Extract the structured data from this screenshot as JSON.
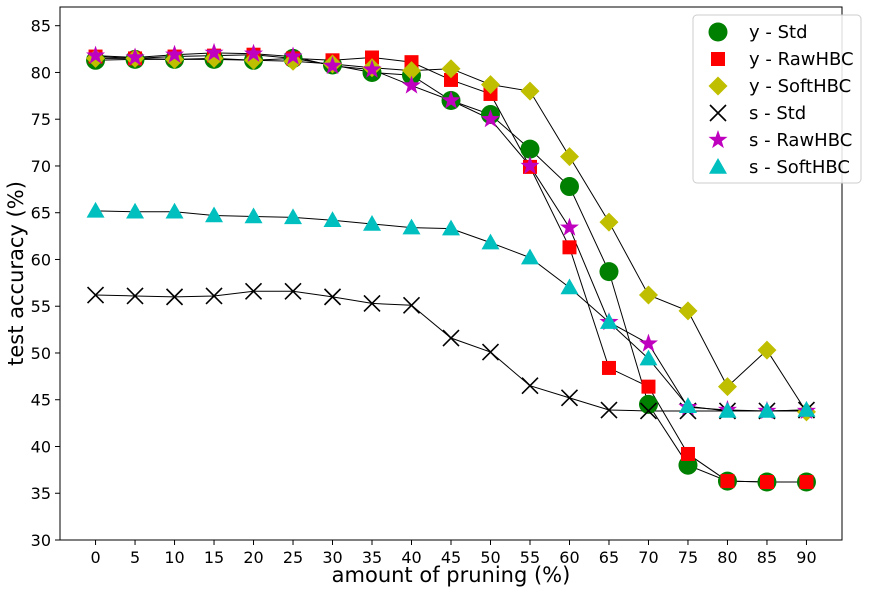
{
  "chart_data": {
    "type": "line",
    "title": "",
    "xlabel": "amount of pruning (%)",
    "ylabel": "test accuracy (%)",
    "x": [
      0,
      5,
      10,
      15,
      20,
      25,
      30,
      35,
      40,
      45,
      50,
      55,
      60,
      65,
      70,
      75,
      80,
      85,
      90
    ],
    "xticks": [
      "0",
      "5",
      "10",
      "15",
      "20",
      "25",
      "30",
      "35",
      "40",
      "45",
      "50",
      "55",
      "60",
      "65",
      "70",
      "75",
      "80",
      "85",
      "90"
    ],
    "yticks": [
      "30",
      "35",
      "40",
      "45",
      "50",
      "55",
      "60",
      "65",
      "70",
      "75",
      "80",
      "85"
    ],
    "ylim": [
      30,
      87
    ],
    "xlim": [
      -4.5,
      94.5
    ],
    "grid": false,
    "legend_position": "top-right",
    "series": [
      {
        "name": "y - Std",
        "marker": "circle",
        "color": "#008000",
        "values": [
          81.3,
          81.4,
          81.4,
          81.4,
          81.3,
          81.5,
          80.8,
          80.0,
          79.7,
          77.0,
          75.5,
          71.8,
          67.8,
          58.7,
          44.5,
          38.0,
          36.3,
          36.2,
          36.2
        ]
      },
      {
        "name": "y - RawHBC",
        "marker": "square",
        "color": "#ff0000",
        "values": [
          81.7,
          81.5,
          81.7,
          81.8,
          81.9,
          81.5,
          81.3,
          81.6,
          81.1,
          79.2,
          77.7,
          69.9,
          61.3,
          48.4,
          46.4,
          39.2,
          36.3,
          36.2,
          36.2
        ]
      },
      {
        "name": "y - SoftHBC",
        "marker": "diamond",
        "color": "#bfbf00",
        "values": [
          81.5,
          81.5,
          81.4,
          81.5,
          81.3,
          81.2,
          80.9,
          80.5,
          80.2,
          80.4,
          78.7,
          78.0,
          71.0,
          64.0,
          56.2,
          54.5,
          46.4,
          50.3,
          43.7
        ]
      },
      {
        "name": "s - Std",
        "marker": "x",
        "color": "#000000",
        "values": [
          56.2,
          56.1,
          56.0,
          56.1,
          56.6,
          56.6,
          56.0,
          55.3,
          55.1,
          51.6,
          50.1,
          46.5,
          45.2,
          43.9,
          43.8,
          43.8,
          43.8,
          43.8,
          43.9
        ]
      },
      {
        "name": "s - RawHBC",
        "marker": "star",
        "color": "#bf00bf",
        "values": [
          81.8,
          81.6,
          81.9,
          82.1,
          82.0,
          81.7,
          80.7,
          80.3,
          78.6,
          77.0,
          75.0,
          70.0,
          63.4,
          53.3,
          51.0,
          44.2,
          43.9,
          43.8,
          43.8
        ]
      },
      {
        "name": "s - SoftHBC",
        "marker": "triangle",
        "color": "#00bfbf",
        "values": [
          65.2,
          65.1,
          65.1,
          64.7,
          64.6,
          64.5,
          64.2,
          63.8,
          63.4,
          63.3,
          61.8,
          60.2,
          57.0,
          53.3,
          49.4,
          44.3,
          43.8,
          43.8,
          43.9
        ]
      }
    ]
  }
}
